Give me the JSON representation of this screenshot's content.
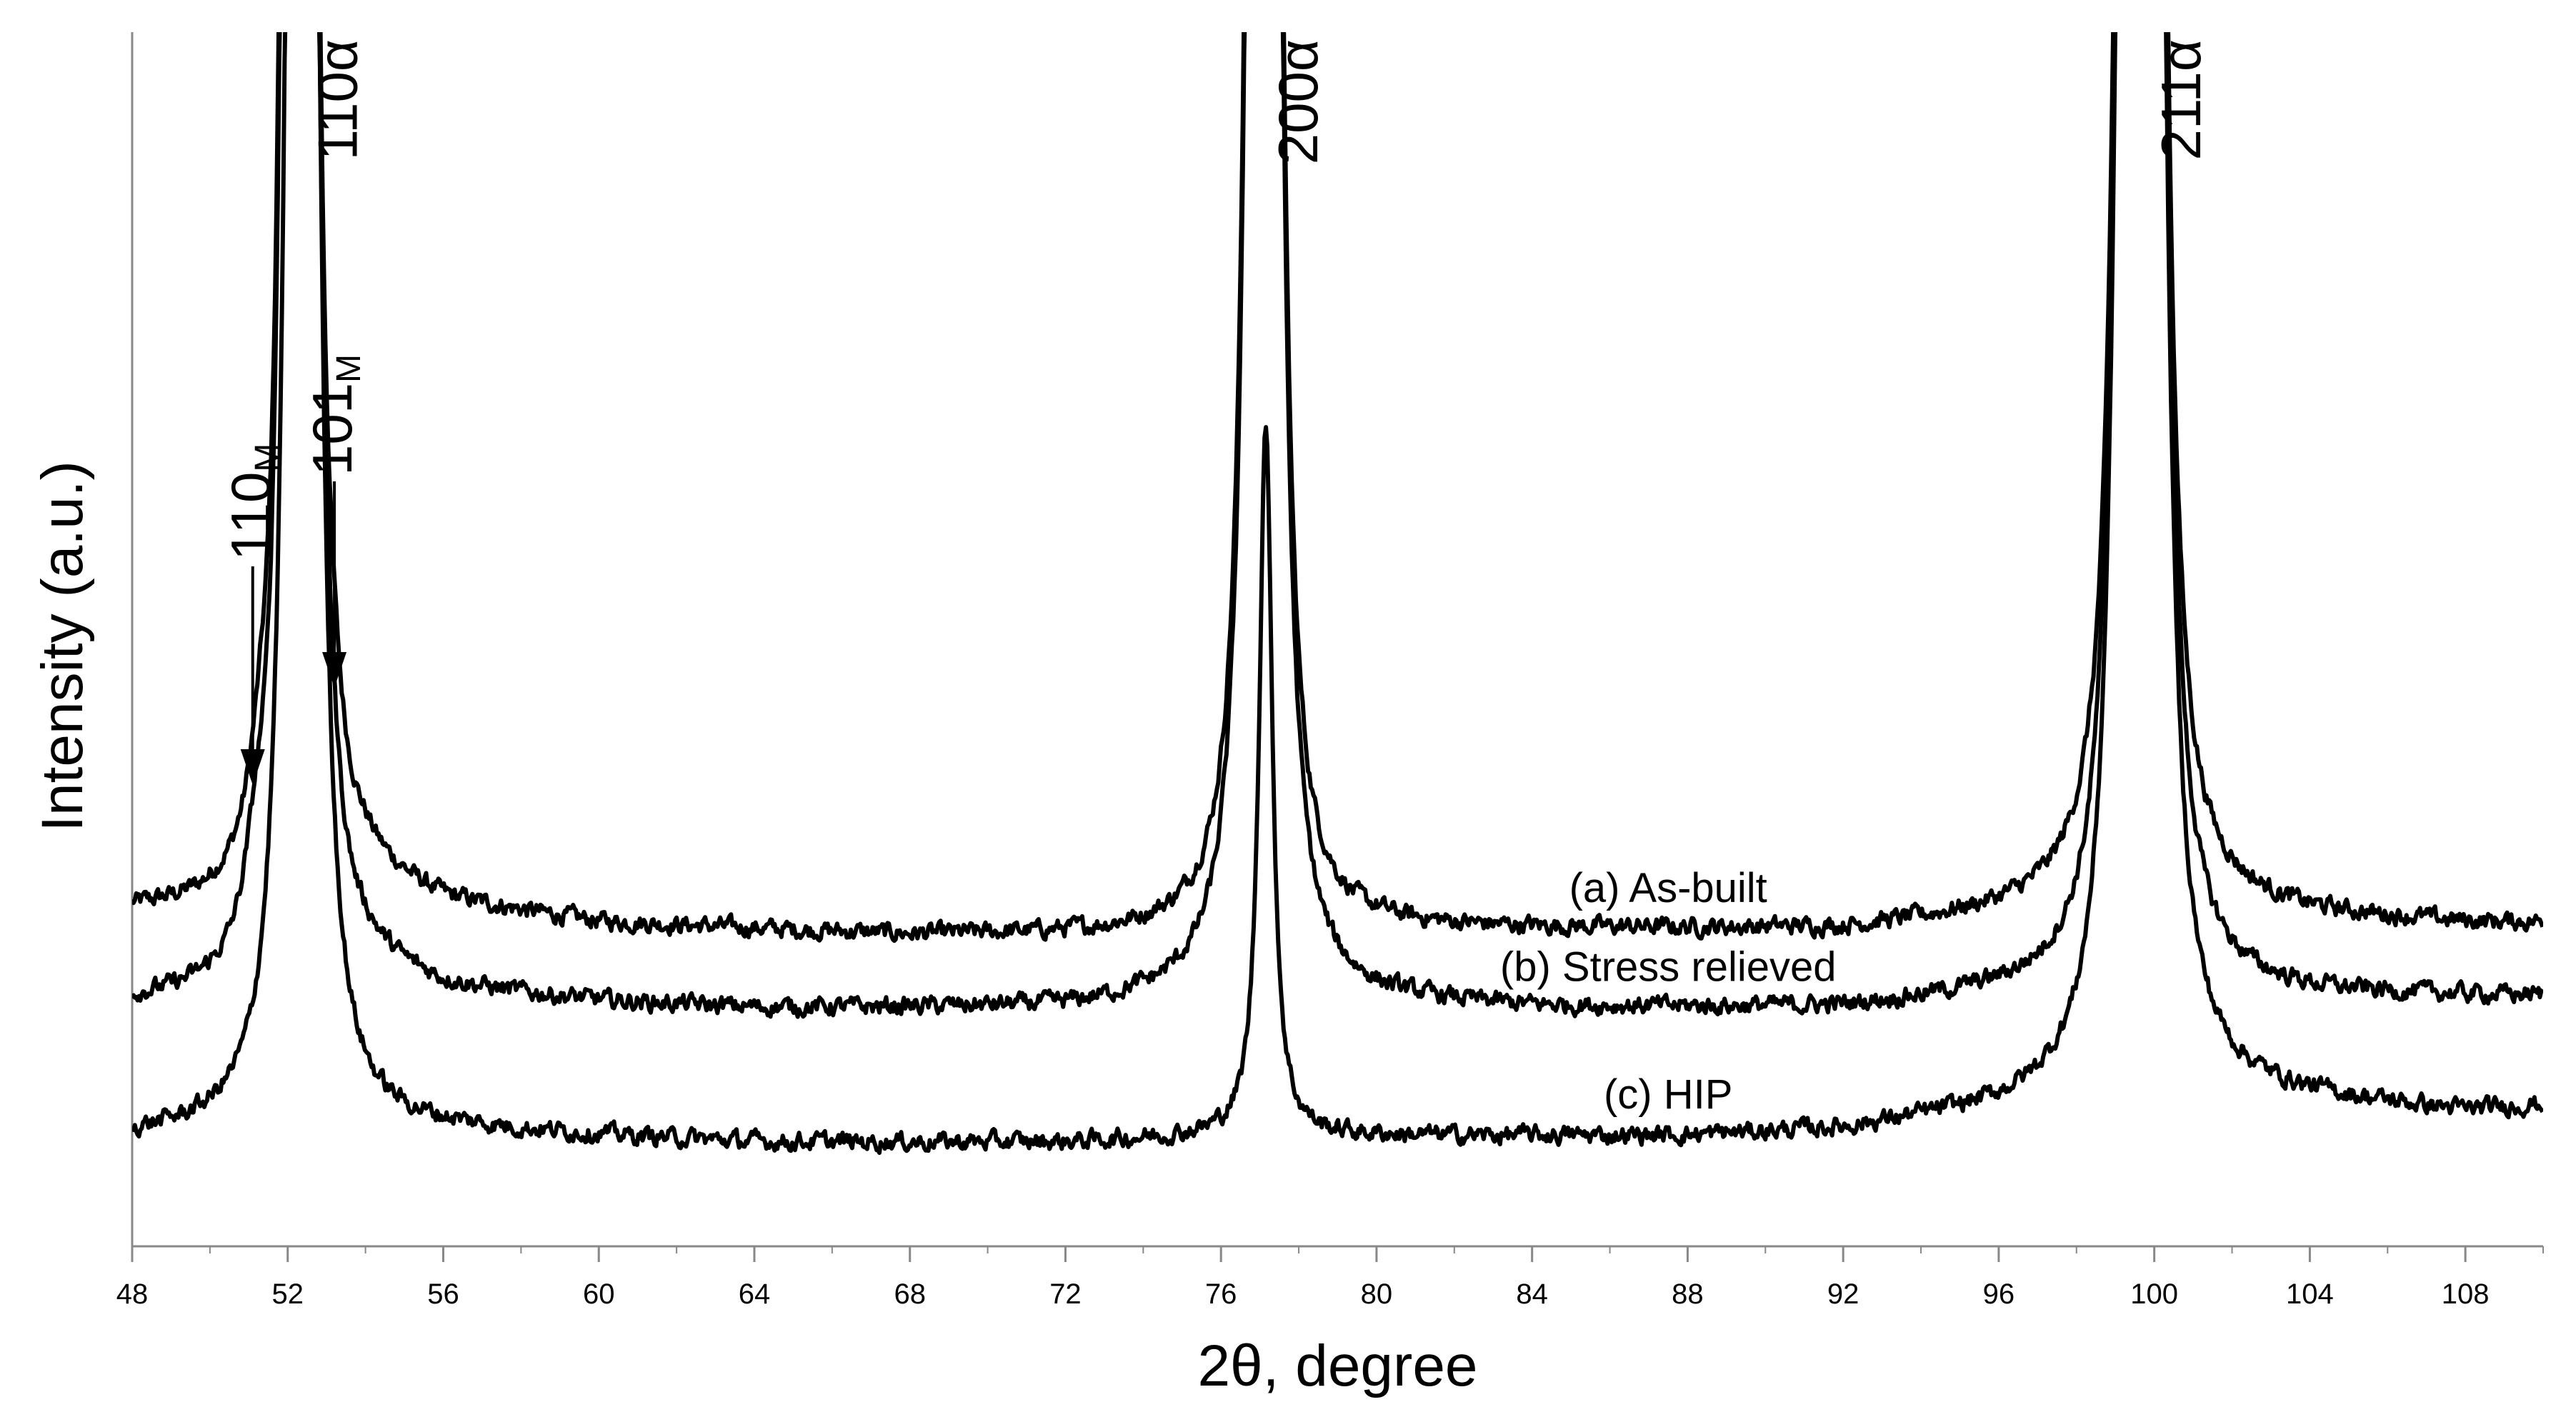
{
  "chart_data": {
    "type": "line",
    "title": "",
    "xlabel": "2θ, degree",
    "ylabel": "Intensity (a.u.)",
    "xlim": [
      48,
      110
    ],
    "ylim": [
      0,
      100
    ],
    "x_ticks": [
      48,
      52,
      56,
      60,
      64,
      68,
      72,
      76,
      80,
      84,
      88,
      92,
      96,
      100,
      104,
      108
    ],
    "grid": false,
    "legend": "none",
    "line_color": "#000000",
    "series": [
      {
        "name": "(a) As-built",
        "label_at": 87.5,
        "baseline_points": [
          [
            48,
            27.5
          ],
          [
            52,
            27.5
          ],
          [
            54,
            30
          ],
          [
            56,
            28
          ],
          [
            60,
            26.5
          ],
          [
            64,
            26
          ],
          [
            68,
            25.5
          ],
          [
            72,
            25.5
          ],
          [
            76,
            25.5
          ],
          [
            80,
            26
          ],
          [
            84,
            26
          ],
          [
            88,
            26
          ],
          [
            92,
            26
          ],
          [
            96,
            27
          ],
          [
            100,
            28
          ],
          [
            104,
            27
          ],
          [
            108,
            26.5
          ],
          [
            110,
            26.5
          ]
        ],
        "peaks": [
          {
            "center": 51.3,
            "height": 5,
            "width": 0.35
          },
          {
            "center": 52.05,
            "height": 180,
            "width": 0.2
          },
          {
            "center": 52.55,
            "height": 180,
            "width": 0.2
          },
          {
            "center": 53.1,
            "height": 5,
            "width": 0.35
          },
          {
            "center": 76.9,
            "height": 180,
            "width": 0.22
          },
          {
            "center": 77.3,
            "height": 180,
            "width": 0.22
          },
          {
            "center": 99.3,
            "height": 180,
            "width": 0.26
          },
          {
            "center": 100.0,
            "height": 180,
            "width": 0.26
          }
        ]
      },
      {
        "name": "(b) Stress relieved",
        "label_at": 87.5,
        "baseline_points": [
          [
            48,
            20
          ],
          [
            52,
            20.5
          ],
          [
            54,
            22.5
          ],
          [
            56,
            21
          ],
          [
            60,
            20
          ],
          [
            64,
            19.5
          ],
          [
            68,
            19.5
          ],
          [
            72,
            19.5
          ],
          [
            76,
            20.5
          ],
          [
            80,
            20
          ],
          [
            84,
            19.5
          ],
          [
            88,
            19.5
          ],
          [
            92,
            19.5
          ],
          [
            96,
            20.5
          ],
          [
            100,
            21
          ],
          [
            104,
            20.5
          ],
          [
            108,
            20.5
          ],
          [
            110,
            20.5
          ]
        ],
        "peaks": [
          {
            "center": 51.2,
            "height": 6,
            "width": 0.35
          },
          {
            "center": 52.05,
            "height": 180,
            "width": 0.2
          },
          {
            "center": 52.55,
            "height": 180,
            "width": 0.2
          },
          {
            "center": 53.0,
            "height": 5,
            "width": 0.35
          },
          {
            "center": 76.9,
            "height": 180,
            "width": 0.22
          },
          {
            "center": 77.3,
            "height": 180,
            "width": 0.22
          },
          {
            "center": 99.3,
            "height": 180,
            "width": 0.26
          },
          {
            "center": 100.0,
            "height": 180,
            "width": 0.26
          }
        ]
      },
      {
        "name": "(c) HIP",
        "label_at": 87.5,
        "baseline_points": [
          [
            48,
            9
          ],
          [
            52,
            9.5
          ],
          [
            56,
            9.5
          ],
          [
            60,
            9
          ],
          [
            64,
            8.5
          ],
          [
            68,
            8.5
          ],
          [
            72,
            8.5
          ],
          [
            76,
            9
          ],
          [
            80,
            9
          ],
          [
            84,
            9
          ],
          [
            88,
            9
          ],
          [
            92,
            9.5
          ],
          [
            96,
            11
          ],
          [
            100,
            13
          ],
          [
            104,
            12
          ],
          [
            108,
            11
          ],
          [
            110,
            11.5
          ]
        ],
        "peaks": [
          {
            "center": 52.2,
            "height": 180,
            "width": 0.22
          },
          {
            "center": 52.55,
            "height": 180,
            "width": 0.22
          },
          {
            "center": 77.15,
            "height": 59,
            "width": 0.2
          },
          {
            "center": 99.3,
            "height": 180,
            "width": 0.26
          },
          {
            "center": 100.0,
            "height": 180,
            "width": 0.26
          }
        ]
      }
    ],
    "annotations": [
      {
        "id": "110M",
        "text": "110",
        "subscript": "M",
        "x": 51.1,
        "arrow_top_y": 56,
        "arrow_tip_y": 38
      },
      {
        "id": "101M",
        "text": "101",
        "subscript": "M",
        "x": 53.2,
        "arrow_top_y": 63,
        "arrow_tip_y": 46
      },
      {
        "id": "110a",
        "text": "110α",
        "x": 53.3
      },
      {
        "id": "200a",
        "text": "200α",
        "x": 78.0
      },
      {
        "id": "211a",
        "text": "211α",
        "x": 100.7
      }
    ]
  }
}
